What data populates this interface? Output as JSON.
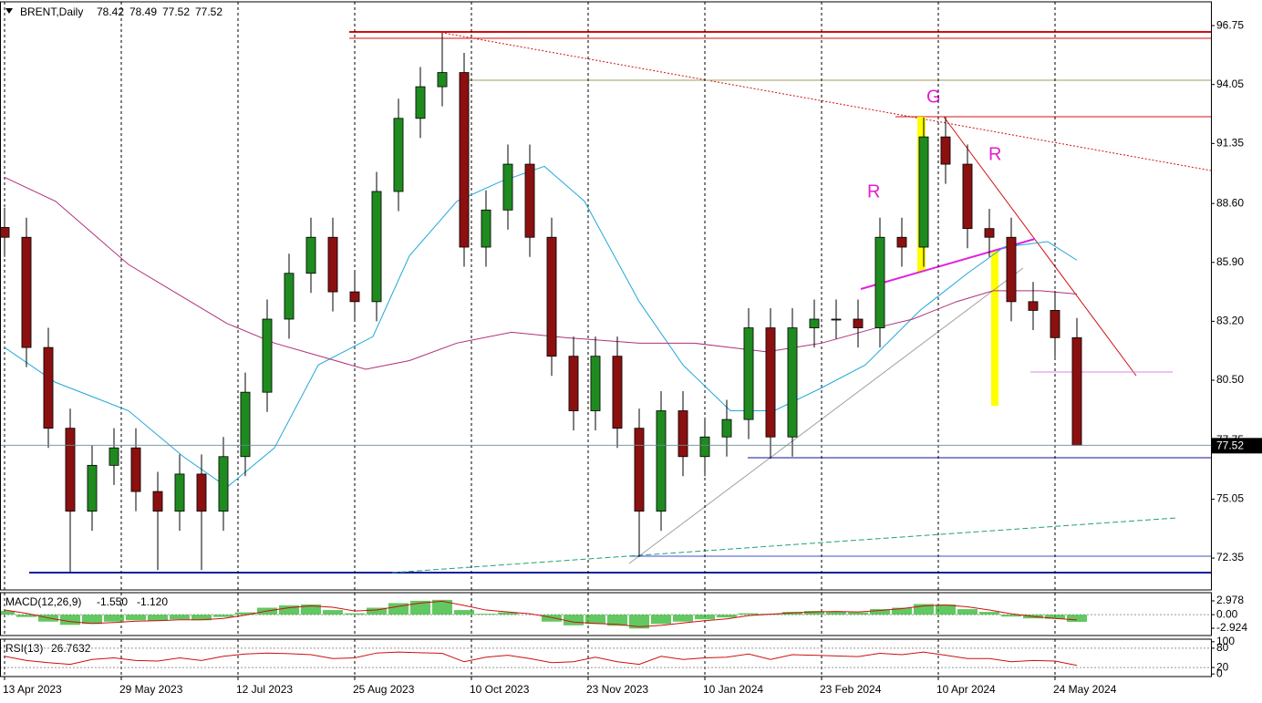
{
  "chart_data": [
    {
      "type": "candlestick",
      "symbol": "BRENT,Daily",
      "header_ohlc": [
        78.42,
        78.49,
        77.52,
        77.52
      ],
      "up_color": "#1f8a1f",
      "down_color": "#8b1010",
      "grid": true,
      "xlim": [
        -1.25,
        330.75
      ],
      "ylim": [
        70.89,
        97.84
      ],
      "yticks": [
        72.35,
        75.05,
        77.75,
        {
          "value": 80.5,
          "label": "80.50"
        },
        {
          "value": 83.2,
          "label": "83.20"
        },
        {
          "value": 85.9,
          "label": "85.90"
        },
        {
          "value": 88.6,
          "label": "88.60"
        },
        91.35,
        94.05,
        96.75
      ],
      "xticks": [
        {
          "value": 0,
          "label": "13 Apr 2023"
        },
        {
          "value": 32,
          "label": "29 May 2023"
        },
        {
          "value": 64,
          "label": "12 Jul 2023"
        },
        {
          "value": 96,
          "label": "25 Aug 2023"
        },
        {
          "value": 128,
          "label": "10 Oct 2023"
        },
        {
          "value": 160,
          "label": "23 Nov 2023"
        },
        {
          "value": 192,
          "label": "10 Jan 2024"
        },
        {
          "value": 224,
          "label": "23 Feb 2024"
        },
        {
          "value": 256,
          "label": "10 Apr 2024"
        },
        {
          "value": 288,
          "label": "24 May 2024"
        }
      ],
      "x": [
        0,
        6,
        12,
        18,
        24,
        30,
        36,
        42,
        48,
        54,
        60,
        66,
        72,
        78,
        84,
        90,
        96,
        102,
        108,
        114,
        120,
        126,
        132,
        138,
        144,
        150,
        156,
        162,
        168,
        174,
        180,
        186,
        192,
        198,
        204,
        210,
        216,
        222,
        228,
        234,
        240,
        246,
        252,
        258,
        264,
        270,
        276,
        282,
        288,
        294
      ],
      "open": [
        87.5,
        87.05,
        82.0,
        78.3,
        74.5,
        76.6,
        77.4,
        75.4,
        74.5,
        76.2,
        74.5,
        77.0,
        79.95,
        83.3,
        85.4,
        87.05,
        84.55,
        84.1,
        89.15,
        92.5,
        93.95,
        94.6,
        86.6,
        88.3,
        90.4,
        87.05,
        81.6,
        79.1,
        81.6,
        78.3,
        74.5,
        79.1,
        77.0,
        77.9,
        78.7,
        82.9,
        77.9,
        82.9,
        83.3,
        83.3,
        82.9,
        87.05,
        86.6,
        91.65,
        90.4,
        87.45,
        87.05,
        84.1,
        83.7,
        82.45
      ],
      "high": [
        88.4,
        87.95,
        82.9,
        79.2,
        77.5,
        78.3,
        78.3,
        76.3,
        77.1,
        77.1,
        77.9,
        80.85,
        84.2,
        86.3,
        87.95,
        87.95,
        85.45,
        90.05,
        93.4,
        94.85,
        96.4,
        95.5,
        89.2,
        91.3,
        91.3,
        87.95,
        82.5,
        82.5,
        82.5,
        79.2,
        80.0,
        80.0,
        78.8,
        79.6,
        83.8,
        83.8,
        83.8,
        84.2,
        84.2,
        84.2,
        87.95,
        87.95,
        92.55,
        92.55,
        91.3,
        88.35,
        87.95,
        85.0,
        84.6,
        83.35
      ],
      "low": [
        86.15,
        81.1,
        77.4,
        71.7,
        73.6,
        75.7,
        74.5,
        71.8,
        73.6,
        71.8,
        73.6,
        76.1,
        79.05,
        82.4,
        84.5,
        83.65,
        83.2,
        83.2,
        88.25,
        91.6,
        93.05,
        85.7,
        85.7,
        87.4,
        86.15,
        80.7,
        78.2,
        78.2,
        77.4,
        72.4,
        73.6,
        76.1,
        76.1,
        77.0,
        77.8,
        76.9,
        77.0,
        82.0,
        82.4,
        82.0,
        82.0,
        85.7,
        85.7,
        89.5,
        86.55,
        86.15,
        83.2,
        82.8,
        81.55,
        77.52
      ],
      "close": [
        87.05,
        82.0,
        78.3,
        74.5,
        76.6,
        77.4,
        75.4,
        74.5,
        76.2,
        74.5,
        77.0,
        79.95,
        83.3,
        85.4,
        87.05,
        84.55,
        84.1,
        89.15,
        92.5,
        93.95,
        94.6,
        86.6,
        88.3,
        90.4,
        87.05,
        81.6,
        79.1,
        81.6,
        78.3,
        74.5,
        79.1,
        77.0,
        77.9,
        78.7,
        82.9,
        77.9,
        82.9,
        83.3,
        83.3,
        82.9,
        87.05,
        86.6,
        91.65,
        90.4,
        87.45,
        87.05,
        84.1,
        83.7,
        82.45,
        77.52
      ],
      "series": [
        {
          "color": "#20a8d8",
          "x": [
            0,
            14,
            34,
            49,
            61,
            74,
            86,
            101,
            111,
            124,
            136,
            148,
            159,
            174,
            186,
            199,
            211,
            224,
            236,
            251,
            264,
            274,
            286,
            294
          ],
          "values": [
            82.0,
            80.4,
            79.1,
            77.0,
            75.6,
            77.4,
            81.2,
            82.5,
            86.2,
            88.7,
            89.6,
            90.3,
            88.7,
            84.1,
            81.2,
            79.1,
            79.1,
            80.15,
            81.2,
            83.7,
            85.4,
            86.6,
            86.85,
            86.0
          ]
        },
        {
          "color": "#b0307a",
          "x": [
            0,
            14,
            34,
            49,
            61,
            74,
            99,
            111,
            124,
            139,
            154,
            174,
            189,
            209,
            224,
            239,
            249,
            261,
            271,
            284,
            294
          ],
          "values": [
            89.8,
            88.7,
            85.8,
            84.3,
            83.1,
            82.2,
            81.0,
            81.4,
            82.2,
            82.7,
            82.45,
            82.2,
            82.2,
            81.8,
            82.2,
            82.9,
            83.3,
            84.1,
            84.6,
            84.6,
            84.45
          ]
        }
      ],
      "annotations": [
        "R",
        "G",
        "R"
      ]
    },
    {
      "type": "macd",
      "label": "MACD(12,26,9)",
      "macd_label": "-1.550",
      "signal_label": "-1.120",
      "ylim": [
        -4.5,
        4.75
      ],
      "yticks": [
        2.978,
        {
          "value": 0,
          "label": "0.00"
        },
        -2.924
      ],
      "macd_color": "#2db52d",
      "signal_color": "#cc1010",
      "macd": [
        0.8,
        -0.5,
        -1.5,
        -2.2,
        -2.0,
        -1.5,
        -1.2,
        -1.3,
        -1.0,
        -1.2,
        -0.5,
        0.5,
        1.5,
        2.0,
        2.2,
        1.0,
        0.3,
        1.5,
        2.5,
        3.0,
        3.2,
        1.0,
        0.2,
        0.5,
        0.0,
        -1.5,
        -2.3,
        -2.0,
        -2.4,
        -3.0,
        -2.0,
        -1.5,
        -1.0,
        -0.6,
        0.3,
        0.2,
        0.6,
        0.8,
        0.7,
        0.5,
        1.2,
        1.5,
        2.3,
        2.2,
        1.2,
        0.6,
        -0.4,
        -0.8,
        -0.9,
        -1.55
      ],
      "signal": [
        1.0,
        0.3,
        -0.7,
        -1.5,
        -1.9,
        -1.7,
        -1.4,
        -1.3,
        -1.1,
        -1.1,
        -0.8,
        -0.1,
        0.8,
        1.5,
        1.9,
        1.6,
        0.8,
        1.0,
        1.8,
        2.5,
        2.9,
        2.0,
        1.0,
        0.6,
        0.2,
        -0.6,
        -1.6,
        -1.9,
        -2.1,
        -2.6,
        -2.3,
        -1.8,
        -1.3,
        -0.9,
        -0.2,
        0.1,
        0.4,
        0.6,
        0.7,
        0.6,
        0.9,
        1.3,
        1.9,
        2.1,
        1.7,
        1.0,
        0.2,
        -0.4,
        -0.8,
        -1.12
      ]
    },
    {
      "type": "rsi",
      "label": "RSI(13)",
      "value_label": "26.7632",
      "color": "#cc1010",
      "ylim": [
        -8,
        108
      ],
      "yticks": [
        0,
        20,
        80,
        100
      ],
      "values": [
        55,
        42,
        35,
        30,
        45,
        50,
        42,
        40,
        50,
        42,
        55,
        62,
        65,
        63,
        60,
        48,
        50,
        65,
        68,
        66,
        64,
        38,
        52,
        58,
        48,
        35,
        38,
        52,
        38,
        30,
        55,
        45,
        50,
        52,
        62,
        45,
        60,
        58,
        56,
        54,
        64,
        60,
        68,
        58,
        48,
        48,
        38,
        42,
        40,
        26.7632
      ]
    }
  ]
}
